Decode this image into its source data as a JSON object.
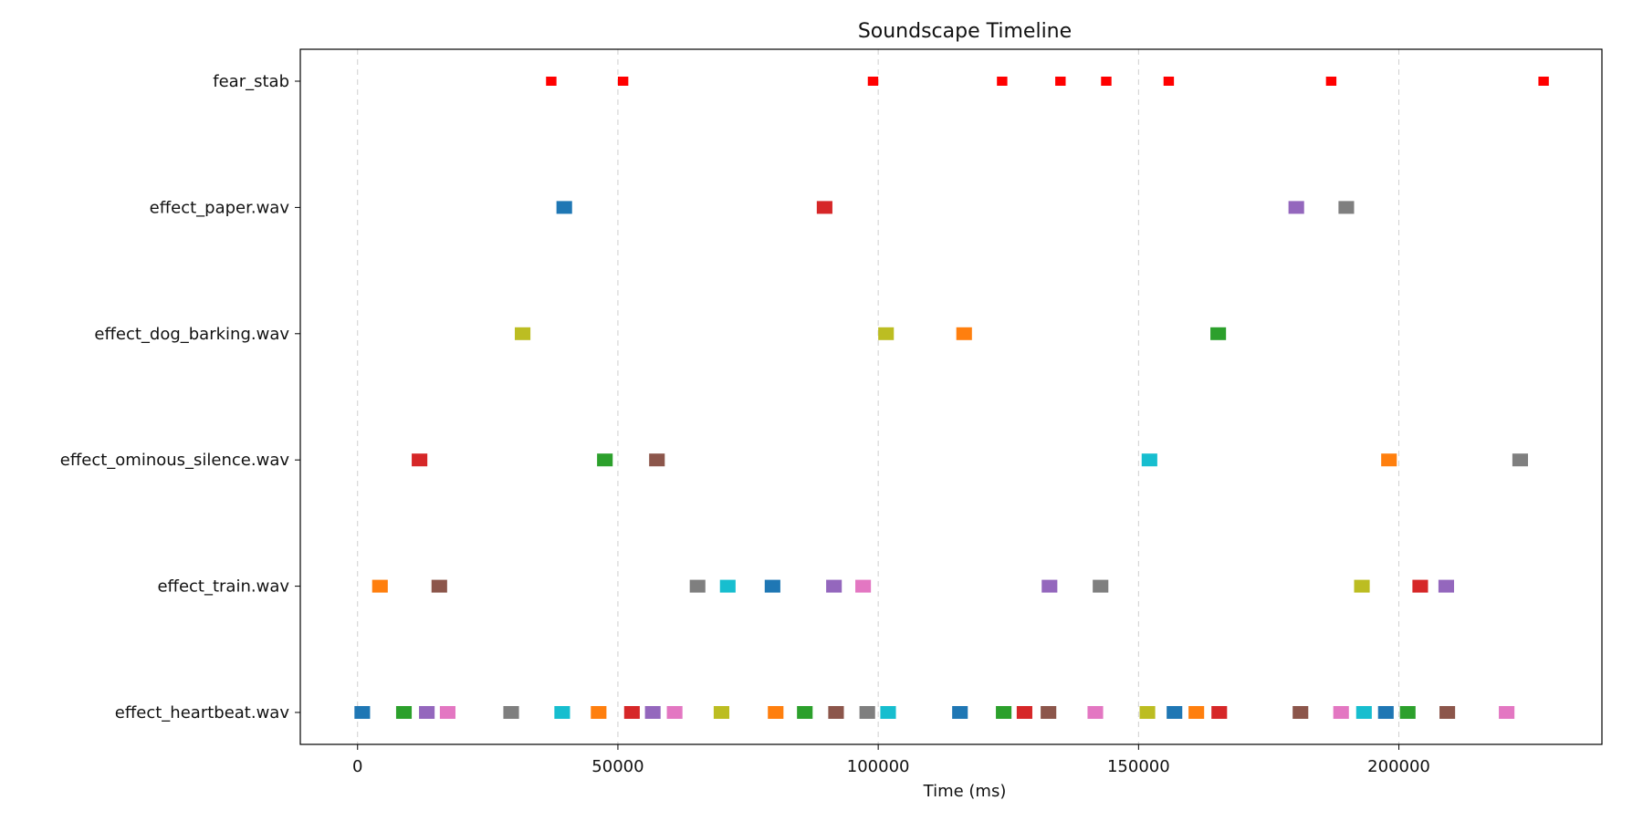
{
  "chart_data": {
    "type": "timeline",
    "title": "Soundscape Timeline",
    "xlabel": "Time (ms)",
    "ylabel": "",
    "xlim": [
      -11000,
      239000
    ],
    "xticks": [
      0,
      50000,
      100000,
      150000,
      200000
    ],
    "grid": "vertical dashed at x ticks",
    "categories": [
      "fear_stab",
      "effect_paper.wav",
      "effect_dog_barking.wav",
      "effect_ominous_silence.wav",
      "effect_train.wav",
      "effect_heartbeat.wav"
    ],
    "colors": [
      "#1f77b4",
      "#ff7f0e",
      "#2ca02c",
      "#d62728",
      "#9467bd",
      "#8c564b",
      "#e377c2",
      "#7f7f7f",
      "#bcbd22",
      "#17becf"
    ],
    "series": [
      {
        "category": "fear_stab",
        "events": [
          {
            "start": 36200,
            "duration": 2000,
            "color": "#ff0000"
          },
          {
            "start": 50000,
            "duration": 2000,
            "color": "#ff0000"
          },
          {
            "start": 98000,
            "duration": 2000,
            "color": "#ff0000"
          },
          {
            "start": 122800,
            "duration": 2000,
            "color": "#ff0000"
          },
          {
            "start": 134000,
            "duration": 2000,
            "color": "#ff0000"
          },
          {
            "start": 142800,
            "duration": 2000,
            "color": "#ff0000"
          },
          {
            "start": 154800,
            "duration": 2000,
            "color": "#ff0000"
          },
          {
            "start": 186000,
            "duration": 2000,
            "color": "#ff0000"
          },
          {
            "start": 226800,
            "duration": 2000,
            "color": "#ff0000"
          }
        ]
      },
      {
        "category": "effect_paper.wav",
        "events": [
          {
            "start": 38200,
            "duration": 3000,
            "color": "#1f77b4"
          },
          {
            "start": 88200,
            "duration": 3000,
            "color": "#d62728"
          },
          {
            "start": 178800,
            "duration": 3000,
            "color": "#9467bd"
          },
          {
            "start": 188400,
            "duration": 3000,
            "color": "#7f7f7f"
          }
        ]
      },
      {
        "category": "effect_dog_barking.wav",
        "events": [
          {
            "start": 30200,
            "duration": 3000,
            "color": "#bcbd22"
          },
          {
            "start": 100000,
            "duration": 3000,
            "color": "#bcbd22"
          },
          {
            "start": 115000,
            "duration": 3000,
            "color": "#ff7f0e"
          },
          {
            "start": 163800,
            "duration": 3000,
            "color": "#2ca02c"
          }
        ]
      },
      {
        "category": "effect_ominous_silence.wav",
        "events": [
          {
            "start": 10400,
            "duration": 3000,
            "color": "#d62728"
          },
          {
            "start": 46000,
            "duration": 3000,
            "color": "#2ca02c"
          },
          {
            "start": 56000,
            "duration": 3000,
            "color": "#8c564b"
          },
          {
            "start": 150600,
            "duration": 3000,
            "color": "#17becf"
          },
          {
            "start": 196600,
            "duration": 3000,
            "color": "#ff7f0e"
          },
          {
            "start": 221800,
            "duration": 3000,
            "color": "#7f7f7f"
          }
        ]
      },
      {
        "category": "effect_train.wav",
        "events": [
          {
            "start": 2800,
            "duration": 3000,
            "color": "#ff7f0e"
          },
          {
            "start": 14200,
            "duration": 3000,
            "color": "#8c564b"
          },
          {
            "start": 63800,
            "duration": 3000,
            "color": "#7f7f7f"
          },
          {
            "start": 69600,
            "duration": 3000,
            "color": "#17becf"
          },
          {
            "start": 78200,
            "duration": 3000,
            "color": "#1f77b4"
          },
          {
            "start": 90000,
            "duration": 3000,
            "color": "#9467bd"
          },
          {
            "start": 95600,
            "duration": 3000,
            "color": "#e377c2"
          },
          {
            "start": 131400,
            "duration": 3000,
            "color": "#9467bd"
          },
          {
            "start": 141200,
            "duration": 3000,
            "color": "#7f7f7f"
          },
          {
            "start": 191400,
            "duration": 3000,
            "color": "#bcbd22"
          },
          {
            "start": 202600,
            "duration": 3000,
            "color": "#d62728"
          },
          {
            "start": 207600,
            "duration": 3000,
            "color": "#9467bd"
          }
        ]
      },
      {
        "category": "effect_heartbeat.wav",
        "events": [
          {
            "start": -600,
            "duration": 3000,
            "color": "#1f77b4"
          },
          {
            "start": 7400,
            "duration": 3000,
            "color": "#2ca02c"
          },
          {
            "start": 11800,
            "duration": 3000,
            "color": "#9467bd"
          },
          {
            "start": 15800,
            "duration": 3000,
            "color": "#e377c2"
          },
          {
            "start": 28000,
            "duration": 3000,
            "color": "#7f7f7f"
          },
          {
            "start": 37800,
            "duration": 3000,
            "color": "#17becf"
          },
          {
            "start": 44800,
            "duration": 3000,
            "color": "#ff7f0e"
          },
          {
            "start": 51200,
            "duration": 3000,
            "color": "#d62728"
          },
          {
            "start": 55200,
            "duration": 3000,
            "color": "#9467bd"
          },
          {
            "start": 59400,
            "duration": 3000,
            "color": "#e377c2"
          },
          {
            "start": 68400,
            "duration": 3000,
            "color": "#bcbd22"
          },
          {
            "start": 78800,
            "duration": 3000,
            "color": "#ff7f0e"
          },
          {
            "start": 84400,
            "duration": 3000,
            "color": "#2ca02c"
          },
          {
            "start": 90400,
            "duration": 3000,
            "color": "#8c564b"
          },
          {
            "start": 96400,
            "duration": 3000,
            "color": "#7f7f7f"
          },
          {
            "start": 100400,
            "duration": 3000,
            "color": "#17becf"
          },
          {
            "start": 114200,
            "duration": 3000,
            "color": "#1f77b4"
          },
          {
            "start": 122600,
            "duration": 3000,
            "color": "#2ca02c"
          },
          {
            "start": 126600,
            "duration": 3000,
            "color": "#d62728"
          },
          {
            "start": 131200,
            "duration": 3000,
            "color": "#8c564b"
          },
          {
            "start": 140200,
            "duration": 3000,
            "color": "#e377c2"
          },
          {
            "start": 150200,
            "duration": 3000,
            "color": "#bcbd22"
          },
          {
            "start": 155400,
            "duration": 3000,
            "color": "#1f77b4"
          },
          {
            "start": 159600,
            "duration": 3000,
            "color": "#ff7f0e"
          },
          {
            "start": 164000,
            "duration": 3000,
            "color": "#d62728"
          },
          {
            "start": 179600,
            "duration": 3000,
            "color": "#8c564b"
          },
          {
            "start": 187400,
            "duration": 3000,
            "color": "#e377c2"
          },
          {
            "start": 191800,
            "duration": 3000,
            "color": "#17becf"
          },
          {
            "start": 196000,
            "duration": 3000,
            "color": "#1f77b4"
          },
          {
            "start": 200200,
            "duration": 3000,
            "color": "#2ca02c"
          },
          {
            "start": 207800,
            "duration": 3000,
            "color": "#8c564b"
          },
          {
            "start": 219200,
            "duration": 3000,
            "color": "#e377c2"
          }
        ]
      }
    ]
  }
}
